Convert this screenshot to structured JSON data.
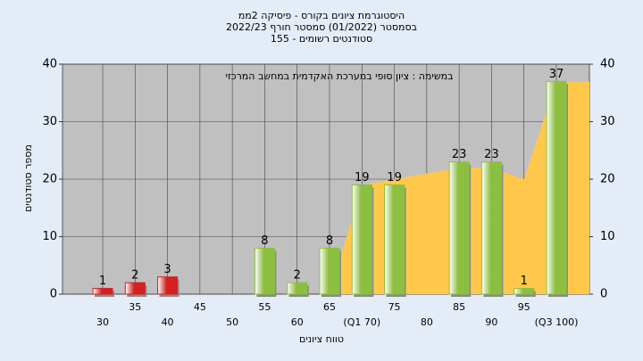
{
  "chart_data": {
    "type": "bar",
    "title": [
      "היסטוגרמת ציונים בקורס - פיסיקה 2ממ",
      "בסמסטר (01/2022) סמסטר חורף 2022/23",
      "סטודנטים רשומים - 155"
    ],
    "annotation": "במשימה : ציון סופי במערכת האקדמית במחשב המרכזי",
    "ylabel": "מספר סטודנטים",
    "xlabel": "טווח ציונים",
    "categories": [
      "30",
      "35",
      "40",
      "45",
      "50",
      "55",
      "60",
      "65",
      "(Q1 70)",
      "75",
      "80",
      "85",
      "90",
      "95",
      "(Q3 100)"
    ],
    "values": [
      1,
      2,
      3,
      null,
      null,
      8,
      2,
      8,
      19,
      19,
      null,
      23,
      23,
      1,
      37
    ],
    "colors": [
      "#d42020",
      "#d42020",
      "#d42020",
      "#8cbf3f",
      "#8cbf3f",
      "#8cbf3f",
      "#8cbf3f",
      "#8cbf3f",
      "#8cbf3f",
      "#8cbf3f",
      "#8cbf3f",
      "#8cbf3f",
      "#8cbf3f",
      "#8cbf3f",
      "#8cbf3f"
    ],
    "area_values": [
      null,
      null,
      null,
      null,
      null,
      null,
      null,
      0,
      19,
      20,
      21,
      22,
      22,
      20,
      37
    ],
    "area_color": "#ffc84a",
    "ylim": [
      0,
      40
    ],
    "yticks": [
      0,
      10,
      20,
      30,
      40
    ],
    "y2lim": [
      0,
      40
    ],
    "y2ticks": [
      0,
      10,
      20,
      30,
      40
    ],
    "grid": true
  }
}
